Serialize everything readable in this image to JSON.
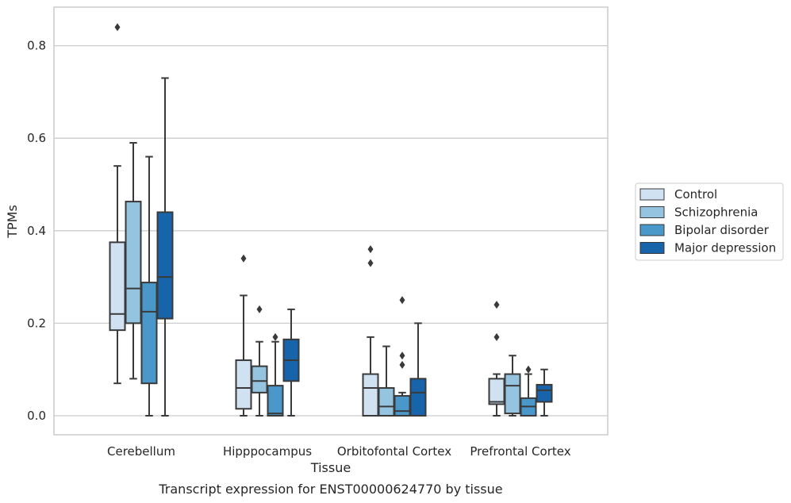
{
  "caption": "Transcript expression for ENST00000624770 by tissue",
  "chart_data": {
    "type": "box",
    "xlabel": "Tissue",
    "ylabel": "TPMs",
    "ylim": [
      -0.04,
      0.885
    ],
    "yticks": [
      0.0,
      0.2,
      0.4,
      0.6,
      0.8
    ],
    "ytick_labels": [
      "0.0",
      "0.2",
      "0.4",
      "0.6",
      "0.8"
    ],
    "grid": "horizontal",
    "legend_position": "right",
    "categories": [
      "Cerebellum",
      "Hipppocampus",
      "Orbitofontal Cortex",
      "Prefrontal Cortex"
    ],
    "series": [
      {
        "name": "Control",
        "color": "#d0e1f2",
        "boxes": [
          {
            "q1": 0.185,
            "median": 0.22,
            "q3": 0.375,
            "whisker_low": 0.07,
            "whisker_high": 0.54,
            "outliers": [
              0.84
            ]
          },
          {
            "q1": 0.015,
            "median": 0.06,
            "q3": 0.12,
            "whisker_low": 0.0,
            "whisker_high": 0.26,
            "outliers": [
              0.34
            ]
          },
          {
            "q1": 0.0,
            "median": 0.06,
            "q3": 0.09,
            "whisker_low": 0.0,
            "whisker_high": 0.17,
            "outliers": [
              0.33,
              0.36
            ]
          },
          {
            "q1": 0.025,
            "median": 0.03,
            "q3": 0.08,
            "whisker_low": 0.0,
            "whisker_high": 0.09,
            "outliers": [
              0.17,
              0.24
            ]
          }
        ]
      },
      {
        "name": "Schizophrenia",
        "color": "#94c4df",
        "boxes": [
          {
            "q1": 0.2,
            "median": 0.275,
            "q3": 0.463,
            "whisker_low": 0.08,
            "whisker_high": 0.59,
            "outliers": []
          },
          {
            "q1": 0.05,
            "median": 0.075,
            "q3": 0.107,
            "whisker_low": 0.0,
            "whisker_high": 0.16,
            "outliers": [
              0.23
            ]
          },
          {
            "q1": 0.0,
            "median": 0.02,
            "q3": 0.06,
            "whisker_low": 0.0,
            "whisker_high": 0.15,
            "outliers": []
          },
          {
            "q1": 0.005,
            "median": 0.065,
            "q3": 0.09,
            "whisker_low": 0.0,
            "whisker_high": 0.13,
            "outliers": []
          }
        ]
      },
      {
        "name": "Bipolar disorder",
        "color": "#4a98c9",
        "boxes": [
          {
            "q1": 0.07,
            "median": 0.225,
            "q3": 0.288,
            "whisker_low": 0.0,
            "whisker_high": 0.56,
            "outliers": []
          },
          {
            "q1": 0.0,
            "median": 0.005,
            "q3": 0.065,
            "whisker_low": 0.0,
            "whisker_high": 0.16,
            "outliers": [
              0.17
            ]
          },
          {
            "q1": 0.0,
            "median": 0.01,
            "q3": 0.043,
            "whisker_low": 0.0,
            "whisker_high": 0.05,
            "outliers": [
              0.11,
              0.13,
              0.25
            ]
          },
          {
            "q1": 0.0,
            "median": 0.02,
            "q3": 0.038,
            "whisker_low": 0.0,
            "whisker_high": 0.09,
            "outliers": [
              0.1
            ]
          }
        ]
      },
      {
        "name": "Major depression",
        "color": "#1764ab",
        "boxes": [
          {
            "q1": 0.21,
            "median": 0.3,
            "q3": 0.44,
            "whisker_low": 0.0,
            "whisker_high": 0.73,
            "outliers": []
          },
          {
            "q1": 0.075,
            "median": 0.12,
            "q3": 0.165,
            "whisker_low": 0.0,
            "whisker_high": 0.23,
            "outliers": []
          },
          {
            "q1": 0.0,
            "median": 0.05,
            "q3": 0.08,
            "whisker_low": 0.0,
            "whisker_high": 0.2,
            "outliers": []
          },
          {
            "q1": 0.03,
            "median": 0.055,
            "q3": 0.067,
            "whisker_low": 0.0,
            "whisker_high": 0.1,
            "outliers": []
          }
        ]
      }
    ]
  }
}
